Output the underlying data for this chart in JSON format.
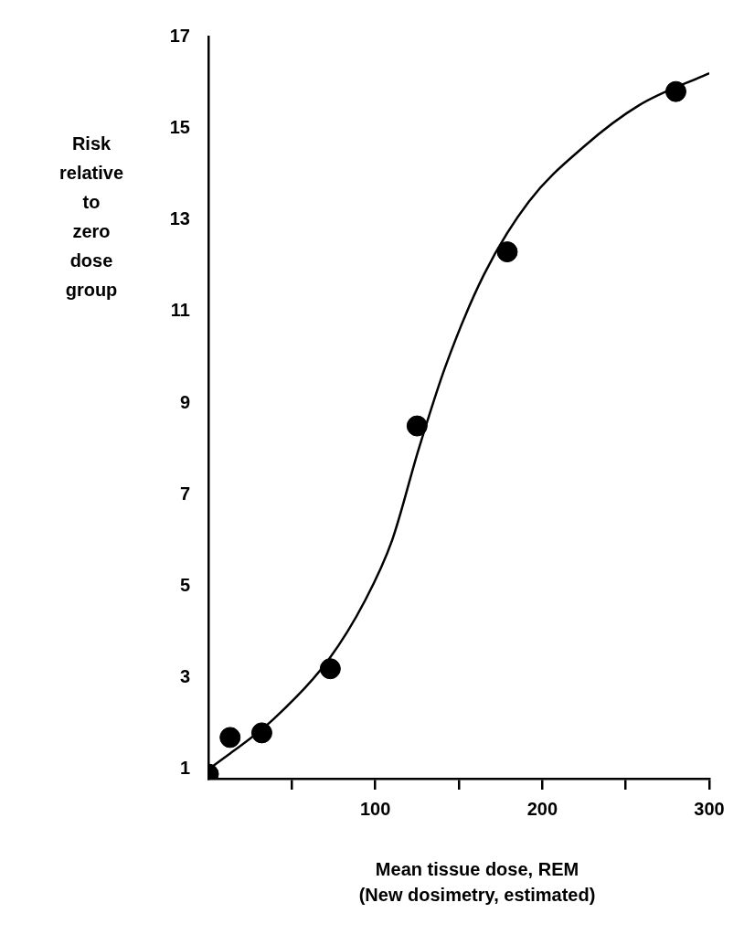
{
  "chart_data": {
    "type": "scatter",
    "xlabel": "Mean tissue dose, REM\n(New dosimetry, estimated)",
    "ylabel": "Risk relative to zero dose group",
    "xlim": [
      0,
      300
    ],
    "ylim": [
      0.8,
      17
    ],
    "xticks": [
      {
        "value": 50,
        "label": null
      },
      100,
      {
        "value": 150,
        "label": null
      },
      200,
      {
        "value": 250,
        "label": null
      },
      300
    ],
    "yticks": [
      1,
      3,
      5,
      7,
      9,
      11,
      13,
      15,
      17
    ],
    "grid": false,
    "legend": false,
    "series": [
      {
        "type": "scatter",
        "color": "#000000",
        "marker": "circle",
        "x": [
          0,
          13,
          32,
          73,
          125,
          179,
          280
        ],
        "values": [
          0.9,
          1.7,
          1.8,
          3.2,
          8.5,
          12.3,
          15.8
        ]
      },
      {
        "type": "line",
        "color": "#000000",
        "marker": "none",
        "x": [
          0,
          39,
          72,
          94,
          110,
          126,
          142,
          165,
          192,
          225,
          258,
          300
        ],
        "values": [
          1,
          2.1,
          3.4,
          4.7,
          6.0,
          8.0,
          9.8,
          11.8,
          13.4,
          14.6,
          15.5,
          16.2
        ]
      }
    ]
  }
}
